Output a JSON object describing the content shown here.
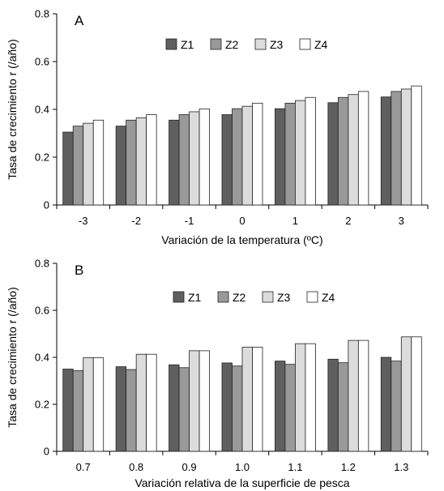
{
  "chart_data": [
    {
      "type": "bar",
      "panel_label": "A",
      "title": "",
      "xlabel": "Variación de la temperatura (ºC)",
      "ylabel": "Tasa de crecimiento r (/año)",
      "categories": [
        "-3",
        "-2",
        "-1",
        "0",
        "1",
        "2",
        "3"
      ],
      "yticks": [
        "0",
        "0.2",
        "0.4",
        "0.6",
        "0.8"
      ],
      "ylim": [
        0,
        0.8
      ],
      "grid": false,
      "legend_position": "top-center",
      "series": [
        {
          "name": "Z1",
          "color": "#5f5f5f",
          "values": [
            0.305,
            0.33,
            0.355,
            0.378,
            0.403,
            0.428,
            0.452
          ]
        },
        {
          "name": "Z2",
          "color": "#999999",
          "values": [
            0.33,
            0.355,
            0.378,
            0.403,
            0.426,
            0.45,
            0.475
          ]
        },
        {
          "name": "Z3",
          "color": "#dcdcdc",
          "values": [
            0.342,
            0.365,
            0.39,
            0.413,
            0.437,
            0.462,
            0.485
          ]
        },
        {
          "name": "Z4",
          "color": "#ffffff",
          "values": [
            0.355,
            0.378,
            0.402,
            0.426,
            0.45,
            0.475,
            0.498
          ]
        }
      ]
    },
    {
      "type": "bar",
      "panel_label": "B",
      "title": "",
      "xlabel": "Variación relativa de la superficie de pesca",
      "ylabel": "Tasa de crecimiento r (/año)",
      "categories": [
        "0.7",
        "0.8",
        "0.9",
        "1.0",
        "1.1",
        "1.2",
        "1.3"
      ],
      "yticks": [
        "0",
        "0.2",
        "0.4",
        "0.6",
        "0.8"
      ],
      "ylim": [
        0,
        0.8
      ],
      "grid": false,
      "legend_position": "top-center",
      "series": [
        {
          "name": "Z1",
          "color": "#5f5f5f",
          "values": [
            0.35,
            0.36,
            0.368,
            0.376,
            0.384,
            0.392,
            0.4
          ]
        },
        {
          "name": "Z2",
          "color": "#999999",
          "values": [
            0.343,
            0.348,
            0.356,
            0.363,
            0.37,
            0.377,
            0.384
          ]
        },
        {
          "name": "Z3",
          "color": "#dcdcdc",
          "values": [
            0.398,
            0.413,
            0.428,
            0.443,
            0.458,
            0.472,
            0.487
          ]
        },
        {
          "name": "Z4",
          "color": "#ffffff",
          "values": [
            0.398,
            0.413,
            0.428,
            0.443,
            0.458,
            0.472,
            0.487
          ]
        }
      ]
    }
  ]
}
